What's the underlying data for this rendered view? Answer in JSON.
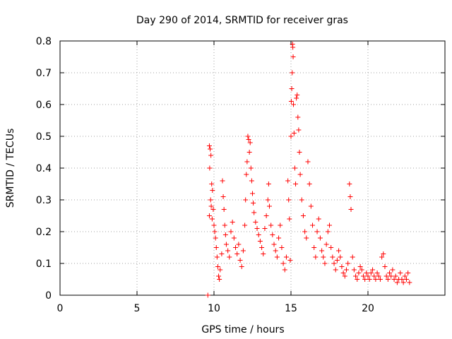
{
  "chart_data": {
    "type": "scatter",
    "title": "Day 290 of 2014, SRMTID for receiver gras",
    "xlabel": "GPS time / hours",
    "ylabel": "SRMTID / TECUs",
    "xlim": [
      0,
      25
    ],
    "ylim": [
      0,
      0.8
    ],
    "xticks": [
      0,
      5,
      10,
      15,
      20
    ],
    "xtick_labels": [
      "0",
      "5",
      "10",
      "15",
      "20"
    ],
    "yticks": [
      0,
      0.1,
      0.2,
      0.3,
      0.4,
      0.5,
      0.6,
      0.7,
      0.8
    ],
    "ytick_labels": [
      "0",
      "0.1",
      "0.2",
      "0.3",
      "0.4",
      "0.5",
      "0.6",
      "0.7",
      "0.8"
    ],
    "grid": true,
    "marker": "plus",
    "color": "#ff0000",
    "series": [
      {
        "name": "SRMTID",
        "points": [
          [
            9.6,
            0.0
          ],
          [
            9.7,
            0.47
          ],
          [
            9.75,
            0.46
          ],
          [
            9.8,
            0.44
          ],
          [
            9.72,
            0.4
          ],
          [
            9.85,
            0.35
          ],
          [
            9.9,
            0.33
          ],
          [
            9.78,
            0.3
          ],
          [
            9.82,
            0.28
          ],
          [
            9.95,
            0.27
          ],
          [
            9.7,
            0.25
          ],
          [
            9.88,
            0.24
          ],
          [
            10.0,
            0.22
          ],
          [
            10.05,
            0.2
          ],
          [
            10.1,
            0.18
          ],
          [
            10.15,
            0.15
          ],
          [
            10.2,
            0.12
          ],
          [
            10.25,
            0.09
          ],
          [
            10.3,
            0.06
          ],
          [
            10.35,
            0.05
          ],
          [
            10.4,
            0.08
          ],
          [
            10.5,
            0.13
          ],
          [
            10.55,
            0.36
          ],
          [
            10.6,
            0.31
          ],
          [
            10.65,
            0.27
          ],
          [
            10.7,
            0.22
          ],
          [
            10.75,
            0.19
          ],
          [
            10.8,
            0.16
          ],
          [
            10.9,
            0.14
          ],
          [
            11.0,
            0.12
          ],
          [
            11.1,
            0.2
          ],
          [
            11.2,
            0.23
          ],
          [
            11.3,
            0.18
          ],
          [
            11.4,
            0.15
          ],
          [
            11.5,
            0.13
          ],
          [
            11.6,
            0.16
          ],
          [
            11.7,
            0.11
          ],
          [
            11.8,
            0.09
          ],
          [
            11.9,
            0.14
          ],
          [
            12.0,
            0.22
          ],
          [
            12.05,
            0.3
          ],
          [
            12.1,
            0.38
          ],
          [
            12.15,
            0.42
          ],
          [
            12.2,
            0.5
          ],
          [
            12.25,
            0.49
          ],
          [
            12.3,
            0.45
          ],
          [
            12.35,
            0.48
          ],
          [
            12.4,
            0.4
          ],
          [
            12.45,
            0.36
          ],
          [
            12.5,
            0.32
          ],
          [
            12.55,
            0.29
          ],
          [
            12.6,
            0.26
          ],
          [
            12.7,
            0.23
          ],
          [
            12.8,
            0.21
          ],
          [
            12.9,
            0.19
          ],
          [
            13.0,
            0.17
          ],
          [
            13.1,
            0.15
          ],
          [
            13.2,
            0.13
          ],
          [
            13.3,
            0.21
          ],
          [
            13.4,
            0.25
          ],
          [
            13.5,
            0.3
          ],
          [
            13.55,
            0.35
          ],
          [
            13.6,
            0.28
          ],
          [
            13.7,
            0.22
          ],
          [
            13.8,
            0.19
          ],
          [
            13.9,
            0.16
          ],
          [
            14.0,
            0.14
          ],
          [
            14.1,
            0.12
          ],
          [
            14.2,
            0.18
          ],
          [
            14.3,
            0.22
          ],
          [
            14.4,
            0.15
          ],
          [
            14.5,
            0.1
          ],
          [
            14.6,
            0.08
          ],
          [
            14.7,
            0.12
          ],
          [
            14.8,
            0.36
          ],
          [
            14.85,
            0.3
          ],
          [
            14.9,
            0.24
          ],
          [
            14.95,
            0.11
          ],
          [
            15.0,
            0.5
          ],
          [
            15.02,
            0.61
          ],
          [
            15.05,
            0.65
          ],
          [
            15.08,
            0.7
          ],
          [
            15.1,
            0.79
          ],
          [
            15.12,
            0.78
          ],
          [
            15.14,
            0.75
          ],
          [
            15.16,
            0.6
          ],
          [
            15.2,
            0.51
          ],
          [
            15.25,
            0.4
          ],
          [
            15.3,
            0.35
          ],
          [
            15.35,
            0.62
          ],
          [
            15.4,
            0.63
          ],
          [
            15.45,
            0.56
          ],
          [
            15.5,
            0.52
          ],
          [
            15.55,
            0.45
          ],
          [
            15.6,
            0.38
          ],
          [
            15.7,
            0.3
          ],
          [
            15.8,
            0.25
          ],
          [
            15.9,
            0.2
          ],
          [
            16.0,
            0.18
          ],
          [
            16.1,
            0.42
          ],
          [
            16.2,
            0.35
          ],
          [
            16.3,
            0.28
          ],
          [
            16.4,
            0.22
          ],
          [
            16.5,
            0.15
          ],
          [
            16.6,
            0.12
          ],
          [
            16.7,
            0.2
          ],
          [
            16.8,
            0.24
          ],
          [
            16.9,
            0.18
          ],
          [
            17.0,
            0.14
          ],
          [
            17.1,
            0.12
          ],
          [
            17.2,
            0.1
          ],
          [
            17.3,
            0.16
          ],
          [
            17.4,
            0.2
          ],
          [
            17.5,
            0.22
          ],
          [
            17.6,
            0.15
          ],
          [
            17.7,
            0.12
          ],
          [
            17.8,
            0.1
          ],
          [
            17.9,
            0.08
          ],
          [
            18.0,
            0.11
          ],
          [
            18.1,
            0.14
          ],
          [
            18.2,
            0.12
          ],
          [
            18.3,
            0.09
          ],
          [
            18.4,
            0.07
          ],
          [
            18.5,
            0.06
          ],
          [
            18.6,
            0.08
          ],
          [
            18.7,
            0.1
          ],
          [
            18.8,
            0.35
          ],
          [
            18.85,
            0.31
          ],
          [
            18.9,
            0.27
          ],
          [
            19.0,
            0.12
          ],
          [
            19.1,
            0.08
          ],
          [
            19.2,
            0.06
          ],
          [
            19.3,
            0.05
          ],
          [
            19.4,
            0.07
          ],
          [
            19.5,
            0.09
          ],
          [
            19.6,
            0.08
          ],
          [
            19.7,
            0.06
          ],
          [
            19.8,
            0.05
          ],
          [
            19.9,
            0.07
          ],
          [
            20.0,
            0.06
          ],
          [
            20.1,
            0.05
          ],
          [
            20.2,
            0.07
          ],
          [
            20.3,
            0.08
          ],
          [
            20.4,
            0.06
          ],
          [
            20.5,
            0.05
          ],
          [
            20.6,
            0.07
          ],
          [
            20.7,
            0.06
          ],
          [
            20.8,
            0.05
          ],
          [
            20.9,
            0.12
          ],
          [
            21.0,
            0.13
          ],
          [
            21.1,
            0.09
          ],
          [
            21.2,
            0.06
          ],
          [
            21.3,
            0.05
          ],
          [
            21.4,
            0.07
          ],
          [
            21.5,
            0.06
          ],
          [
            21.6,
            0.08
          ],
          [
            21.7,
            0.05
          ],
          [
            21.8,
            0.06
          ],
          [
            21.9,
            0.04
          ],
          [
            22.0,
            0.05
          ],
          [
            22.1,
            0.07
          ],
          [
            22.2,
            0.05
          ],
          [
            22.3,
            0.04
          ],
          [
            22.4,
            0.06
          ],
          [
            22.5,
            0.05
          ],
          [
            22.6,
            0.07
          ],
          [
            22.7,
            0.04
          ]
        ]
      }
    ]
  }
}
